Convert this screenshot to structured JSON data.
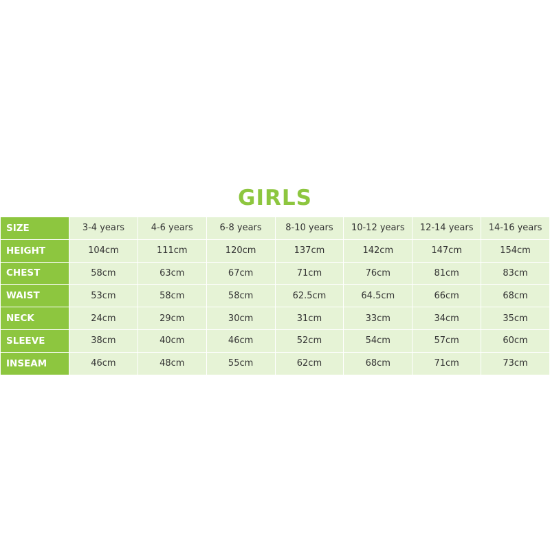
{
  "title": "GIRLS",
  "colors": {
    "accent": "#8dc63f",
    "cell_bg": "#e6f3d6"
  },
  "rows": [
    {
      "label": "SIZE",
      "values": [
        "3-4 years",
        "4-6 years",
        "6-8 years",
        "8-10 years",
        "10-12 years",
        "12-14 years",
        "14-16 years"
      ]
    },
    {
      "label": "HEIGHT",
      "values": [
        "104cm",
        "111cm",
        "120cm",
        "137cm",
        "142cm",
        "147cm",
        "154cm"
      ]
    },
    {
      "label": "CHEST",
      "values": [
        "58cm",
        "63cm",
        "67cm",
        "71cm",
        "76cm",
        "81cm",
        "83cm"
      ]
    },
    {
      "label": "WAIST",
      "values": [
        "53cm",
        "58cm",
        "58cm",
        "62.5cm",
        "64.5cm",
        "66cm",
        "68cm"
      ]
    },
    {
      "label": "NECK",
      "values": [
        "24cm",
        "29cm",
        "30cm",
        "31cm",
        "33cm",
        "34cm",
        "35cm"
      ]
    },
    {
      "label": "SLEEVE",
      "values": [
        "38cm",
        "40cm",
        "46cm",
        "52cm",
        "54cm",
        "57cm",
        "60cm"
      ]
    },
    {
      "label": "INSEAM",
      "values": [
        "46cm",
        "48cm",
        "55cm",
        "62cm",
        "68cm",
        "71cm",
        "73cm"
      ]
    }
  ]
}
